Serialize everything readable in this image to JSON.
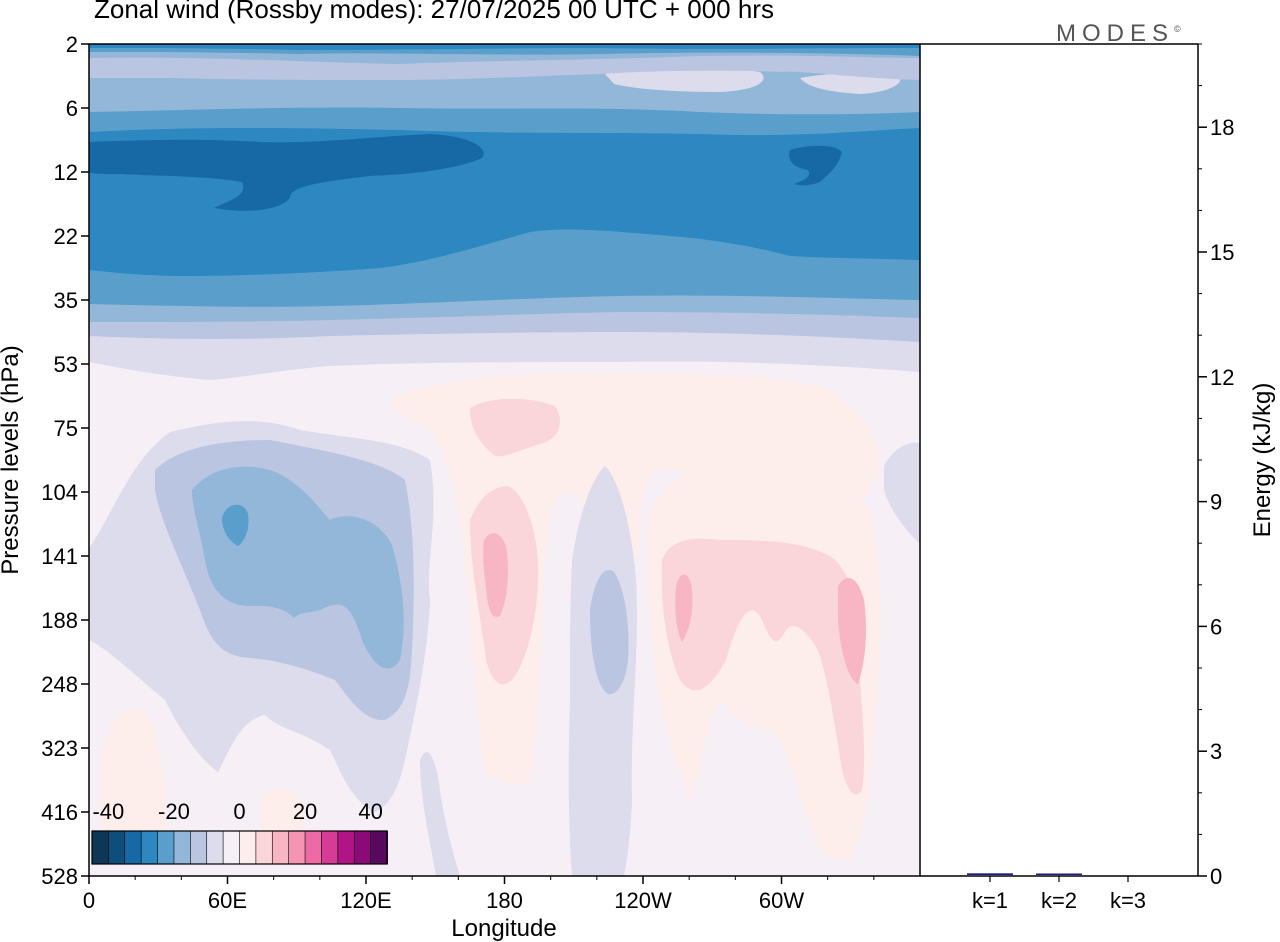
{
  "title": "Zonal wind (Rossby modes):  27/07/2025  00 UTC  + 000 hrs",
  "brand": {
    "text": "MODES",
    "mark": "©"
  },
  "chart_data": [
    {
      "type": "heatmap",
      "xlabel": "Longitude",
      "ylabel": "Pressure levels (hPa)",
      "x_ticks": [
        "0",
        "60E",
        "120E",
        "180",
        "120W",
        "60W"
      ],
      "x_tick_degrees": [
        0,
        60,
        120,
        180,
        240,
        300
      ],
      "xlim": [
        0,
        360
      ],
      "y_levels_hPa": [
        2,
        6,
        12,
        22,
        35,
        53,
        75,
        104,
        141,
        188,
        248,
        323,
        416,
        528
      ],
      "y_tick_labels": [
        "2",
        "6",
        "12",
        "22",
        "35",
        "53",
        "75",
        "104",
        "141",
        "188",
        "248",
        "323",
        "416",
        "528"
      ],
      "colorbar": {
        "tick_labels": [
          "-40",
          "-20",
          "0",
          "20",
          "40"
        ],
        "tick_values": [
          -40,
          -20,
          0,
          20,
          40
        ],
        "colors": [
          "#0e3655",
          "#0d4f7a",
          "#1769a6",
          "#2d87c0",
          "#5a9fcc",
          "#93b7d9",
          "#b9c5e1",
          "#dcdcec",
          "#f6eff5",
          "#fdeeec",
          "#fbd6d8",
          "#f8b6c3",
          "#f594b3",
          "#ed6aa5",
          "#d63b97",
          "#b01485",
          "#8a0b77",
          "#58085f"
        ]
      },
      "fields": {
        "upper_easterlies": "negative zonal wind, -10 to -35 m/s, from 2 to about 40 hPa, at all longitudes",
        "rossby_cells": [
          {
            "longitude_range": [
              20,
              135
            ],
            "pressure_range_hPa": [
              75,
              330
            ],
            "peak": -15
          },
          {
            "longitude_range": [
              165,
              205
            ],
            "pressure_range_hPa": [
              60,
              300
            ],
            "peak": 10
          },
          {
            "longitude_range": [
              210,
              240
            ],
            "pressure_range_hPa": [
              100,
              300
            ],
            "peak": -7
          },
          {
            "longitude_range": [
              250,
              350
            ],
            "pressure_range_hPa": [
              60,
              500
            ],
            "peak": 10
          }
        ]
      }
    },
    {
      "type": "bar",
      "categories": [
        "k=1",
        "k=2",
        "k=3"
      ],
      "values": [
        0.04,
        0.02,
        0.0
      ],
      "ylabel": "Energy (kJ/kg)",
      "ylim": [
        0,
        20
      ],
      "y_ticks": [
        0,
        3,
        6,
        9,
        12,
        15,
        18
      ],
      "bar_color": "#1a1a8c"
    }
  ]
}
